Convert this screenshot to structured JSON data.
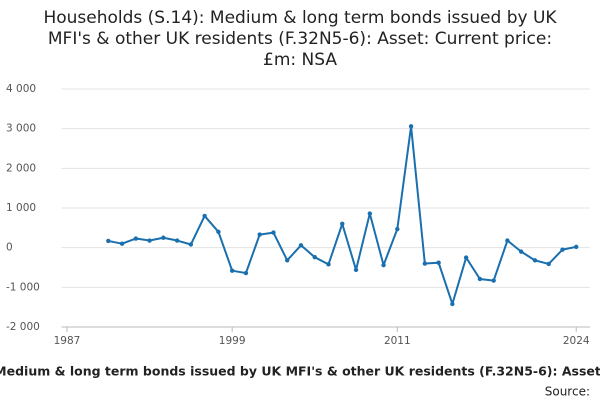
{
  "chart_data": {
    "type": "line",
    "title": [
      "Households (S.14): Medium & long term bonds issued by UK",
      "MFI's & other UK residents (F.32N5-6): Asset: Current price:",
      "£m: NSA"
    ],
    "footer": "Medium & long term bonds issued by UK MFI's & other UK residents (F.32N5-6): Asset:",
    "source": "Source:",
    "x": [
      1990,
      1991,
      1992,
      1993,
      1994,
      1995,
      1996,
      1997,
      1998,
      1999,
      2000,
      2001,
      2002,
      2003,
      2004,
      2005,
      2006,
      2007,
      2008,
      2009,
      2010,
      2011,
      2012,
      2013,
      2014,
      2015,
      2016,
      2017,
      2018,
      2019,
      2020,
      2021,
      2022,
      2023,
      2024
    ],
    "series": [
      {
        "color": "#1a6faf",
        "values": [
          170,
          100,
          230,
          180,
          250,
          180,
          80,
          800,
          400,
          -580,
          -640,
          330,
          380,
          -320,
          60,
          -240,
          -420,
          600,
          -560,
          860,
          -440,
          470,
          3060,
          -400,
          -380,
          -1420,
          -250,
          -790,
          -830,
          180,
          -100,
          -320,
          -410,
          -50,
          20
        ]
      }
    ],
    "xlim": [
      1986.6,
      2025
    ],
    "xticks": [
      1987,
      1999,
      2011,
      2024
    ],
    "ylim": [
      -2000,
      4000
    ],
    "yticks": [
      {
        "value": -2000,
        "label": "-2 000"
      },
      {
        "value": -1000,
        "label": "-1 000"
      },
      0,
      {
        "value": 1000,
        "label": "1 000"
      },
      {
        "value": 2000,
        "label": "2 000"
      },
      {
        "value": 3000,
        "label": "3 000"
      },
      {
        "value": 4000,
        "label": "4 000"
      }
    ],
    "grid": true
  }
}
